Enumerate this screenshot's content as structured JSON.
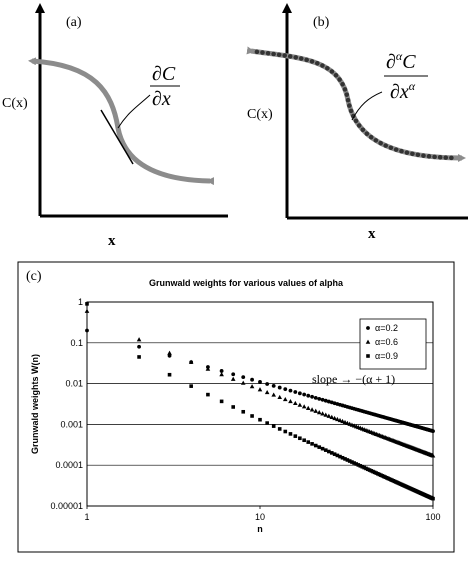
{
  "panel_a": {
    "label": "(a)",
    "ylabel": "C(x)",
    "xlabel": "x",
    "deriv_num": "∂C",
    "deriv_den": "∂x"
  },
  "panel_b": {
    "label": "(b)",
    "ylabel": "C(x)",
    "xlabel": "x",
    "deriv_num": "∂",
    "deriv_num_sup": "α",
    "deriv_num_tail": "C",
    "deriv_den": "∂x",
    "deriv_den_sup": "α"
  },
  "panel_c": {
    "label": "(c)",
    "slope_annotation": "slope  → −(α + 1)"
  },
  "colors": {
    "curve_gray": "#8c8c8c",
    "dots": "#333333",
    "axes": "#000000",
    "grid": "#000000"
  },
  "chart_data": {
    "type": "scatter",
    "title": "Grunwald weights for various values of alpha",
    "xlabel": "n",
    "ylabel": "Grunwald weights W(n)",
    "x_scale": "log",
    "y_scale": "log",
    "xlim": [
      1,
      100
    ],
    "ylim": [
      1e-05,
      1
    ],
    "x_ticks": [
      "1",
      "10",
      "100"
    ],
    "y_ticks": [
      "1",
      "0.1",
      "0.01",
      "0.001",
      "0.0001",
      "0.00001"
    ],
    "grid": "horizontal",
    "legend_position": "top-right",
    "series": [
      {
        "name": "α=0.2",
        "alpha": 0.2,
        "marker": "circle",
        "n_range": [
          1,
          100
        ]
      },
      {
        "name": "α=0.6",
        "alpha": 0.6,
        "marker": "triangle",
        "n_range": [
          1,
          100
        ]
      },
      {
        "name": "α=0.9",
        "alpha": 0.9,
        "marker": "square",
        "n_range": [
          1,
          100
        ]
      }
    ]
  }
}
